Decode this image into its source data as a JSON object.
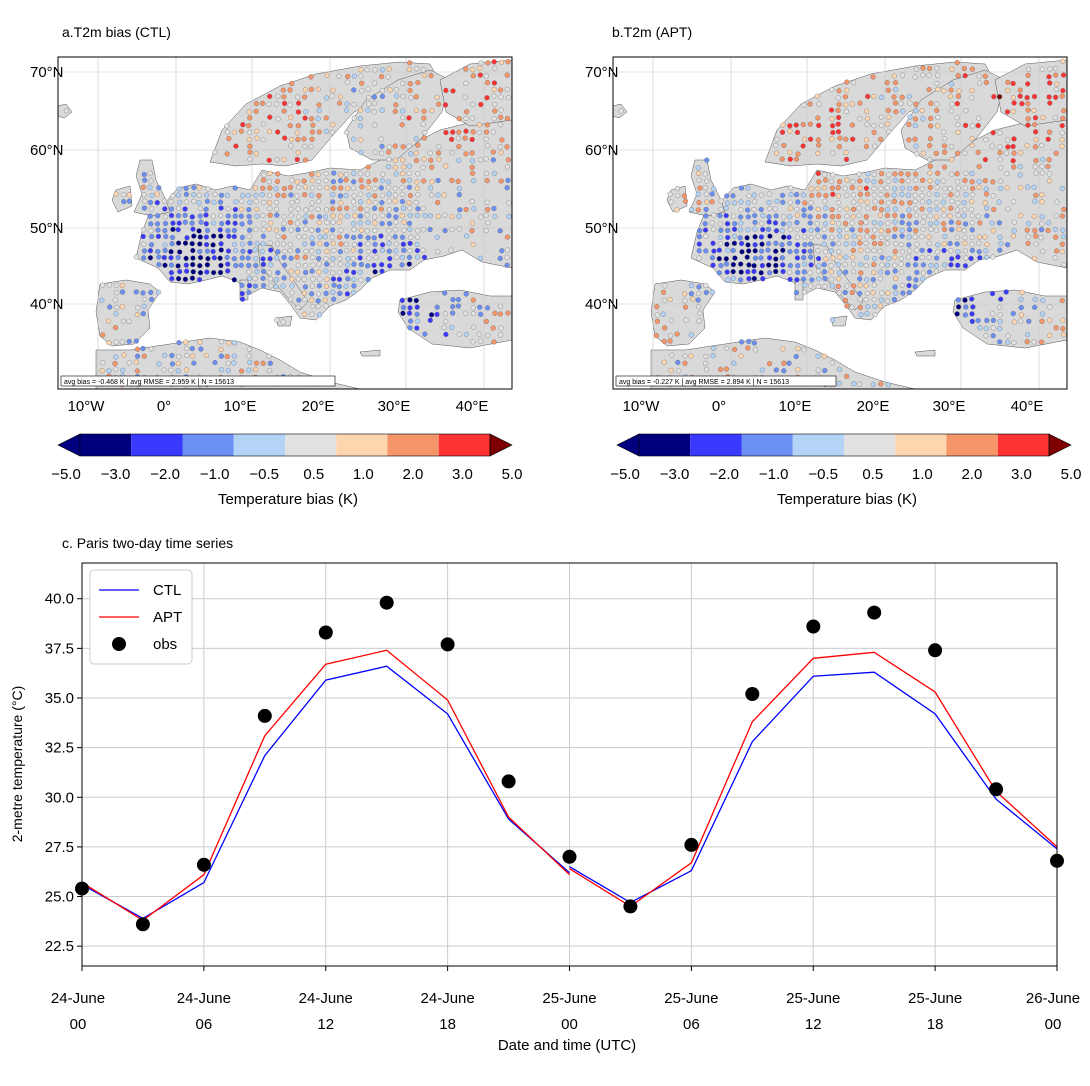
{
  "figure": {
    "colorbar": {
      "colors": [
        "#00007f",
        "#3a3aff",
        "#6b8ff2",
        "#b3d3f7",
        "#e2e2e2",
        "#fdd6b0",
        "#f4956a",
        "#ff3333",
        "#7f0000"
      ],
      "tick_labels": [
        "−5.0",
        "−3.0",
        "−2.0",
        "−1.0",
        "−0.5",
        "0.5",
        "1.0",
        "2.0",
        "3.0",
        "5.0"
      ],
      "label": "Temperature bias (K)"
    },
    "maps": [
      {
        "title": "a.T2m bias (CTL)",
        "stats": "avg bias = -0.468 K  |  avg RMSE = 2.959 K  |  N = 15613",
        "lat_labels": [
          "70°N",
          "60°N",
          "50°N",
          "40°N"
        ],
        "lon_labels": [
          "10°W",
          "0°",
          "10°E",
          "20°E",
          "30°E",
          "40°E"
        ]
      },
      {
        "title": "b.T2m (APT)",
        "stats": "avg bias = -0.227 K  |  avg RMSE = 2.894 K  |  N = 15613",
        "lat_labels": [
          "70°N",
          "60°N",
          "50°N",
          "40°N"
        ],
        "lon_labels": [
          "10°W",
          "0°",
          "10°E",
          "20°E",
          "30°E",
          "40°E"
        ]
      }
    ]
  },
  "chart_data": {
    "type": "line",
    "title": "c. Paris two-day time series",
    "xlabel": "Date and time (UTC)",
    "ylabel": "2-metre temperature (°C)",
    "ylim": [
      21.5,
      41.8
    ],
    "yticks": [
      "22.5",
      "25.0",
      "27.5",
      "30.0",
      "32.5",
      "35.0",
      "37.5",
      "40.0"
    ],
    "xticks": [
      {
        "date": "24-June",
        "hour": "00"
      },
      {
        "date": "24-June",
        "hour": "06"
      },
      {
        "date": "24-June",
        "hour": "12"
      },
      {
        "date": "24-June",
        "hour": "18"
      },
      {
        "date": "25-June",
        "hour": "00"
      },
      {
        "date": "25-June",
        "hour": "06"
      },
      {
        "date": "25-June",
        "hour": "12"
      },
      {
        "date": "25-June",
        "hour": "18"
      },
      {
        "date": "26-June",
        "hour": "00"
      }
    ],
    "x_hours": [
      0,
      3,
      6,
      9,
      12,
      15,
      18,
      21,
      24,
      27,
      30,
      33,
      36,
      39,
      42,
      45,
      48
    ],
    "grid": true,
    "legend_position": "top-left",
    "series": [
      {
        "name": "CTL",
        "type": "line",
        "color": "#0000ff",
        "segments": [
          {
            "x": [
              0,
              3,
              6,
              9,
              12,
              15,
              18,
              21,
              24
            ],
            "y": [
              25.6,
              23.9,
              25.7,
              32.1,
              35.9,
              36.6,
              34.2,
              28.9,
              26.2
            ]
          },
          {
            "x": [
              24,
              27,
              30,
              33,
              36,
              39,
              42,
              45,
              48
            ],
            "y": [
              26.5,
              24.7,
              26.3,
              32.8,
              36.1,
              36.3,
              34.2,
              29.9,
              27.4
            ]
          }
        ]
      },
      {
        "name": "APT",
        "type": "line",
        "color": "#ff0000",
        "segments": [
          {
            "x": [
              0,
              3,
              6,
              9,
              12,
              15,
              18,
              21,
              24
            ],
            "y": [
              25.7,
              23.8,
              26.1,
              33.1,
              36.7,
              37.4,
              34.9,
              29.0,
              26.1
            ]
          },
          {
            "x": [
              24,
              27,
              30,
              33,
              36,
              39,
              42,
              45,
              48
            ],
            "y": [
              26.4,
              24.5,
              26.7,
              33.8,
              37.0,
              37.3,
              35.3,
              30.3,
              27.5
            ]
          }
        ]
      },
      {
        "name": "obs",
        "type": "scatter",
        "color": "#000000",
        "x": [
          0,
          3,
          6,
          9,
          12,
          15,
          18,
          21,
          24,
          27,
          30,
          33,
          36,
          39,
          42,
          45,
          48
        ],
        "y": [
          25.4,
          23.6,
          26.6,
          34.1,
          38.3,
          39.8,
          37.7,
          30.8,
          27.0,
          24.5,
          27.6,
          35.2,
          38.6,
          39.3,
          37.4,
          30.4,
          26.8
        ]
      }
    ]
  }
}
